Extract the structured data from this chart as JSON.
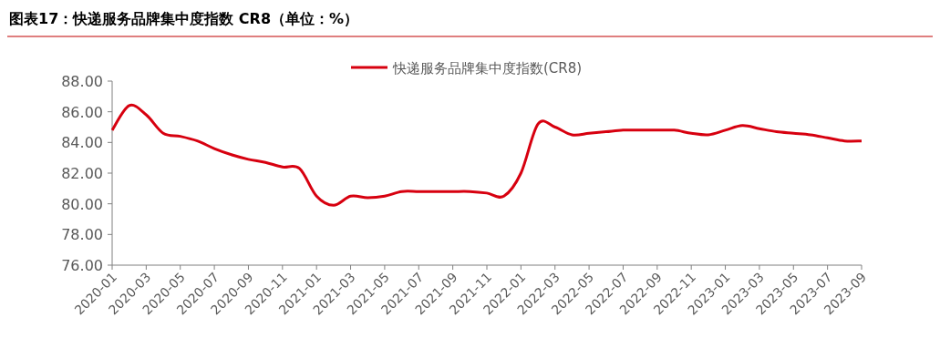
{
  "chart_data": {
    "type": "line",
    "title": "图表17：快递服务品牌集中度指数 CR8（单位：%）",
    "categories": [
      "2020-01",
      null,
      "2020-03",
      null,
      "2020-05",
      null,
      "2020-07",
      null,
      "2020-09",
      null,
      "2020-11",
      null,
      "2021-01",
      null,
      "2021-03",
      null,
      "2021-05",
      null,
      "2021-07",
      null,
      "2021-09",
      null,
      "2021-11",
      null,
      "2022-01",
      null,
      "2022-03",
      null,
      "2022-05",
      null,
      "2022-07",
      null,
      "2022-09",
      null,
      "2022-11",
      null,
      "2023-01",
      null,
      "2023-03",
      null,
      "2023-05",
      null,
      "2023-07",
      null,
      "2023-09"
    ],
    "series": [
      {
        "name": "快递服务品牌集中度指数(CR8)",
        "color": "#d7000f",
        "values": [
          84.8,
          86.4,
          85.8,
          84.6,
          84.4,
          84.1,
          83.6,
          83.2,
          82.9,
          82.7,
          82.4,
          82.3,
          80.5,
          79.9,
          80.5,
          80.4,
          80.5,
          80.8,
          80.8,
          80.8,
          80.8,
          80.8,
          80.7,
          80.5,
          82.0,
          85.2,
          85.0,
          84.5,
          84.6,
          84.7,
          84.8,
          84.8,
          84.8,
          84.8,
          84.6,
          84.5,
          84.8,
          85.1,
          84.9,
          84.7,
          84.6,
          84.5,
          84.3,
          84.1,
          84.1
        ]
      }
    ],
    "ylim": [
      76,
      88
    ],
    "yticks": [
      {
        "value": 76,
        "label": "76.00"
      },
      {
        "value": 78,
        "label": "78.00"
      },
      {
        "value": 80,
        "label": "80.00"
      },
      {
        "value": 82,
        "label": "82.00"
      },
      {
        "value": 84,
        "label": "84.00"
      },
      {
        "value": 86,
        "label": "86.00"
      },
      {
        "value": 88,
        "label": "88.00"
      }
    ],
    "grid": false,
    "legend": "top",
    "marker": "none",
    "line_style": "solid"
  }
}
